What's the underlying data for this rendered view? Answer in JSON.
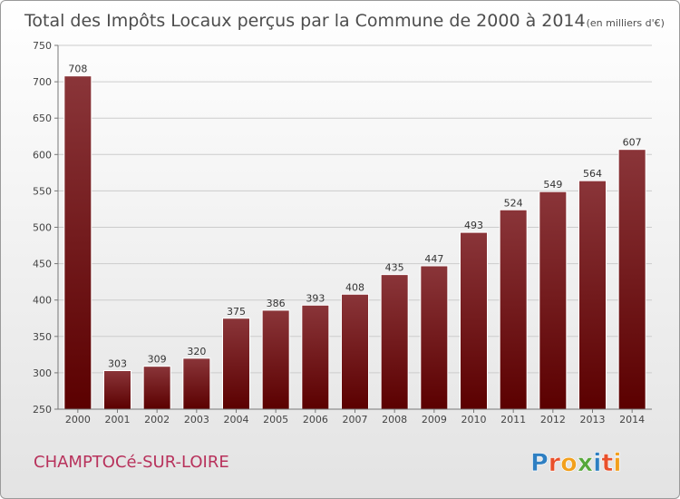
{
  "chart_data": {
    "type": "bar",
    "title": "Total des Impôts Locaux perçus par la Commune de 2000 à 2014",
    "unit": "(en milliers d'€)",
    "categories": [
      "2000",
      "2001",
      "2002",
      "2003",
      "2004",
      "2005",
      "2006",
      "2007",
      "2008",
      "2009",
      "2010",
      "2011",
      "2012",
      "2013",
      "2014"
    ],
    "values": [
      708,
      303,
      309,
      320,
      375,
      386,
      393,
      408,
      435,
      447,
      493,
      524,
      549,
      564,
      607
    ],
    "ylim": [
      250,
      750
    ],
    "yticks": [
      250,
      300,
      350,
      400,
      450,
      500,
      550,
      600,
      650,
      700,
      750
    ],
    "xlabel": "",
    "ylabel": "",
    "grid": true,
    "colors": {
      "bar_top": "#8a3539",
      "bar_bottom": "#5b0000",
      "grid": "#cccccc"
    }
  },
  "commune": "CHAMPTOCé-SUR-LOIRE",
  "logo": {
    "letters": [
      "P",
      "r",
      "o",
      "x",
      "i",
      "t",
      "i"
    ],
    "colors": [
      "#2e7fc2",
      "#e9502b",
      "#f2a01d",
      "#56a83a",
      "#2e7fc2",
      "#e9502b",
      "#f2a01d"
    ]
  }
}
